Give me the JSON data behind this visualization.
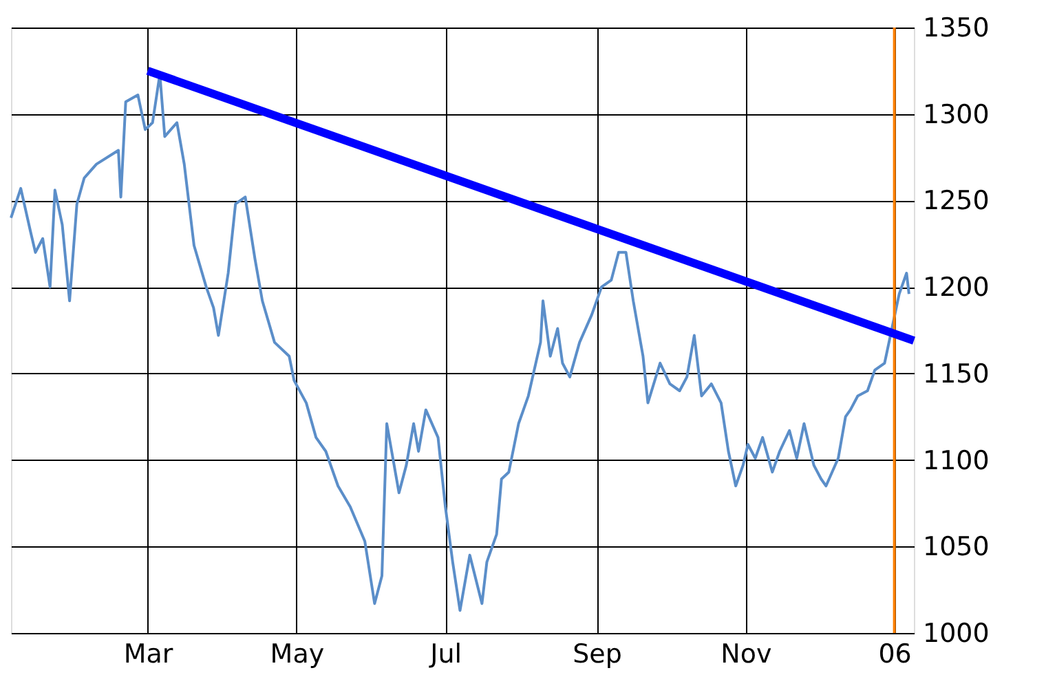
{
  "chart_data": {
    "type": "line",
    "xlim": [
      "2005-01-04",
      "2006-01-09"
    ],
    "xticks": [
      {
        "value": "2005-03-01",
        "label": "Mar"
      },
      {
        "value": "2005-05-01",
        "label": "May"
      },
      {
        "value": "2005-07-01",
        "label": "Jul"
      },
      {
        "value": "2005-09-01",
        "label": "Sep"
      },
      {
        "value": "2005-11-01",
        "label": "Nov"
      },
      {
        "value": "2006-01-01",
        "label": "06"
      }
    ],
    "ylim": [
      1000,
      1350
    ],
    "yticks": [
      1000,
      1050,
      1100,
      1150,
      1200,
      1250,
      1300,
      1350
    ],
    "grid": true,
    "marker": "none",
    "line_style": "solid",
    "series": [
      {
        "color": "#5b8ec9",
        "x": [
          "2005-01-04",
          "2005-01-08",
          "2005-01-12",
          "2005-01-14",
          "2005-01-17",
          "2005-01-20",
          "2005-01-22",
          "2005-01-25",
          "2005-01-28",
          "2005-01-31",
          "2005-02-03",
          "2005-02-08",
          "2005-02-17",
          "2005-02-18",
          "2005-02-20",
          "2005-02-25",
          "2005-02-28",
          "2005-03-03",
          "2005-03-06",
          "2005-03-08",
          "2005-03-13",
          "2005-03-16",
          "2005-03-20",
          "2005-03-25",
          "2005-03-28",
          "2005-03-30",
          "2005-04-03",
          "2005-04-06",
          "2005-04-10",
          "2005-04-14",
          "2005-04-17",
          "2005-04-22",
          "2005-04-28",
          "2005-04-30",
          "2005-05-05",
          "2005-05-09",
          "2005-05-13",
          "2005-05-18",
          "2005-05-23",
          "2005-05-29",
          "2005-06-02",
          "2005-06-05",
          "2005-06-07",
          "2005-06-12",
          "2005-06-15",
          "2005-06-18",
          "2005-06-20",
          "2005-06-23",
          "2005-06-28",
          "2005-07-01",
          "2005-07-04",
          "2005-07-07",
          "2005-07-11",
          "2005-07-16",
          "2005-07-18",
          "2005-07-22",
          "2005-07-24",
          "2005-07-27",
          "2005-07-31",
          "2005-08-04",
          "2005-08-09",
          "2005-08-10",
          "2005-08-13",
          "2005-08-16",
          "2005-08-18",
          "2005-08-21",
          "2005-08-25",
          "2005-08-30",
          "2005-09-03",
          "2005-09-07",
          "2005-09-10",
          "2005-09-13",
          "2005-09-16",
          "2005-09-20",
          "2005-09-22",
          "2005-09-27",
          "2005-10-01",
          "2005-10-05",
          "2005-10-08",
          "2005-10-11",
          "2005-10-14",
          "2005-10-18",
          "2005-10-22",
          "2005-10-25",
          "2005-10-28",
          "2005-10-31",
          "2005-11-02",
          "2005-11-05",
          "2005-11-08",
          "2005-11-12",
          "2005-11-15",
          "2005-11-19",
          "2005-11-22",
          "2005-11-25",
          "2005-11-29",
          "2005-12-02",
          "2005-12-04",
          "2005-12-09",
          "2005-12-12",
          "2005-12-14",
          "2005-12-17",
          "2005-12-21",
          "2005-12-24",
          "2005-12-28",
          "2005-12-31",
          "2006-01-03",
          "2006-01-06",
          "2006-01-07"
        ],
        "values": [
          1240,
          1257,
          1232,
          1220,
          1228,
          1200,
          1256,
          1236,
          1192,
          1248,
          1263,
          1271,
          1279,
          1252,
          1307,
          1311,
          1291,
          1295,
          1323,
          1287,
          1295,
          1271,
          1224,
          1200,
          1188,
          1172,
          1208,
          1248,
          1252,
          1216,
          1192,
          1168,
          1160,
          1146,
          1133,
          1113,
          1105,
          1085,
          1073,
          1053,
          1017,
          1033,
          1121,
          1081,
          1097,
          1121,
          1105,
          1129,
          1113,
          1073,
          1041,
          1013,
          1045,
          1017,
          1041,
          1057,
          1089,
          1093,
          1121,
          1137,
          1168,
          1192,
          1160,
          1176,
          1156,
          1148,
          1168,
          1184,
          1200,
          1204,
          1220,
          1220,
          1192,
          1160,
          1133,
          1156,
          1144,
          1140,
          1148,
          1172,
          1137,
          1144,
          1133,
          1105,
          1085,
          1097,
          1109,
          1101,
          1113,
          1093,
          1105,
          1117,
          1101,
          1121,
          1097,
          1089,
          1085,
          1101,
          1125,
          1129,
          1137,
          1140,
          1152,
          1156,
          1176,
          1196,
          1208,
          1196
        ]
      },
      {
        "type": "line",
        "color": "#0000ff",
        "x": [
          "2005-03-01",
          "2006-01-09"
        ],
        "values": [
          1325,
          1169
        ]
      }
    ],
    "ref_lines": [
      {
        "axis": "x",
        "value": "2006-01-01",
        "color": "#ff8000"
      }
    ]
  }
}
